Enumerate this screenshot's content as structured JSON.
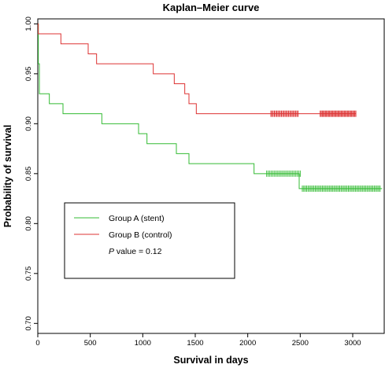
{
  "chart_data": {
    "type": "line",
    "title": "Kaplan–Meier curve",
    "xlabel": "Survival in days",
    "ylabel": "Probability of survival",
    "xlim": [
      0,
      3300
    ],
    "ylim": [
      0.69,
      1.005
    ],
    "xticks": [
      0,
      500,
      1000,
      1500,
      2000,
      2500,
      3000
    ],
    "yticks": [
      0.7,
      0.75,
      0.8,
      0.85,
      0.9,
      0.95,
      1.0
    ],
    "xtick_labels": [
      "0",
      "500",
      "1000",
      "1500",
      "2000",
      "2500",
      "3000"
    ],
    "ytick_labels": [
      "0.70",
      "0.75",
      "0.80",
      "0.85",
      "0.90",
      "0.95",
      "1.00"
    ],
    "grid": false,
    "legend_position": "lower-left",
    "series": [
      {
        "name": "Group A (stent)",
        "color": "#33bb33",
        "steps": [
          [
            0,
            1.0
          ],
          [
            5,
            0.96
          ],
          [
            15,
            0.93
          ],
          [
            110,
            0.92
          ],
          [
            240,
            0.91
          ],
          [
            610,
            0.9
          ],
          [
            960,
            0.89
          ],
          [
            1040,
            0.88
          ],
          [
            1320,
            0.87
          ],
          [
            1440,
            0.86
          ],
          [
            2060,
            0.85
          ],
          [
            2490,
            0.835
          ],
          [
            3280,
            0.835
          ]
        ],
        "censored_ranges": [
          [
            2180,
            2500,
            22,
            0.85
          ],
          [
            2520,
            3260,
            55,
            0.835
          ]
        ]
      },
      {
        "name": "Group B (control)",
        "color": "#dd3333",
        "steps": [
          [
            0,
            1.0
          ],
          [
            5,
            0.99
          ],
          [
            220,
            0.98
          ],
          [
            480,
            0.97
          ],
          [
            560,
            0.96
          ],
          [
            1100,
            0.95
          ],
          [
            1300,
            0.94
          ],
          [
            1400,
            0.93
          ],
          [
            1440,
            0.92
          ],
          [
            1510,
            0.91
          ],
          [
            3030,
            0.91
          ]
        ],
        "censored_ranges": [
          [
            2220,
            2480,
            24,
            0.91
          ],
          [
            2690,
            3030,
            35,
            0.91
          ]
        ]
      }
    ],
    "annotation": {
      "p_italic": "P",
      "p_rest": " value = 0.12"
    }
  }
}
